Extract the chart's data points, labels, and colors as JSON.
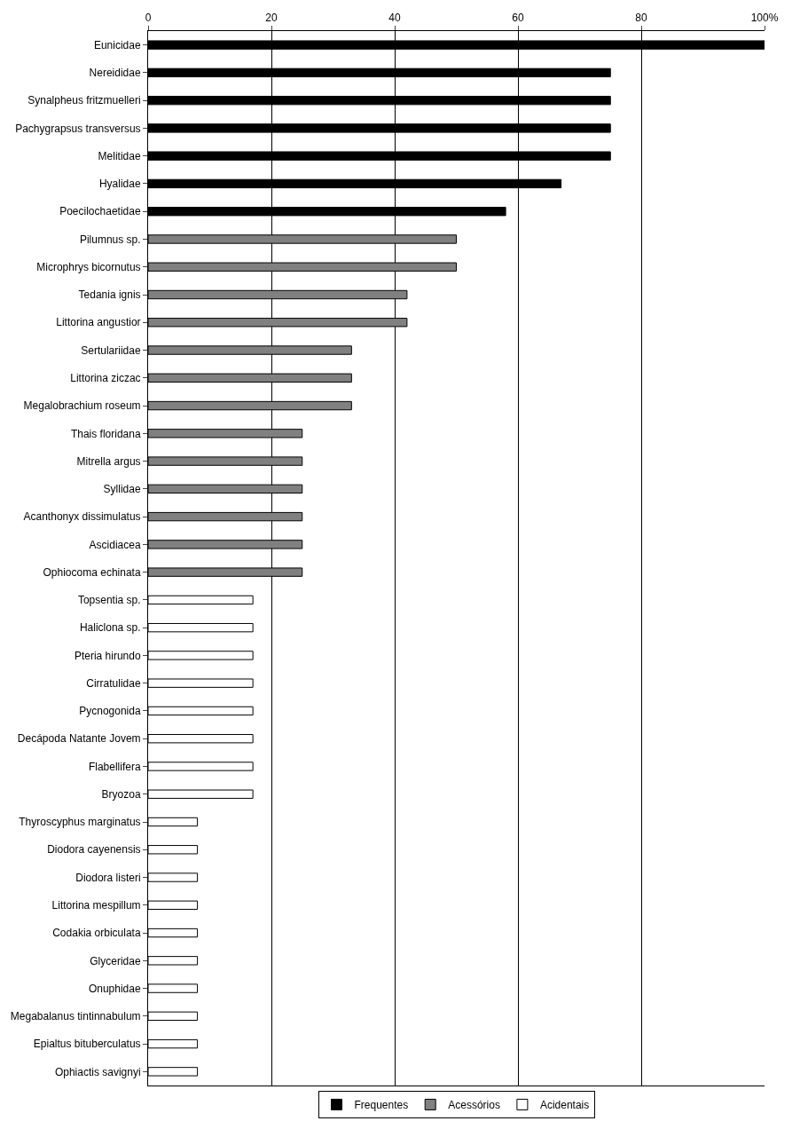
{
  "chart_data": {
    "type": "bar",
    "orientation": "horizontal",
    "categories": [
      "Eunicidae",
      "Nereididae",
      "Synalpheus fritzmuelleri",
      "Pachygrapsus transversus",
      "Melitidae",
      "Hyalidae",
      "Poecilochaetidae",
      "Pilumnus sp.",
      "Microphrys bicornutus",
      "Tedania ignis",
      "Littorina angustior",
      "Sertulariidae",
      "Littorina ziczac",
      "Megalobrachium roseum",
      "Thais floridana",
      "Mitrella argus",
      "Syllidae",
      "Acanthonyx dissimulatus",
      "Ascidiacea",
      "Ophiocoma echinata",
      "Topsentia sp.",
      "Haliclona sp.",
      "Pteria hirundo",
      "Cirratulidae",
      "Pycnogonida",
      "Decápoda Natante Jovem",
      "Flabellifera",
      "Bryozoa",
      "Thyroscyphus marginatus",
      "Diodora cayenensis",
      "Diodora listeri",
      "Littorina mespillum",
      "Codakia orbiculata",
      "Glyceridae",
      "Onuphidae",
      "Megabalanus tintinnabulum",
      "Epialtus bituberculatus",
      "Ophiactis savignyi"
    ],
    "series": [
      {
        "name": "Frequentes",
        "color": "#000000",
        "values": [
          100,
          75,
          75,
          75,
          75,
          67,
          58,
          null,
          null,
          null,
          null,
          null,
          null,
          null,
          null,
          null,
          null,
          null,
          null,
          null,
          null,
          null,
          null,
          null,
          null,
          null,
          null,
          null,
          null,
          null,
          null,
          null,
          null,
          null,
          null,
          null,
          null,
          null
        ]
      },
      {
        "name": "Acessórios",
        "color": "#808080",
        "values": [
          null,
          null,
          null,
          null,
          null,
          null,
          null,
          50,
          50,
          42,
          42,
          33,
          33,
          33,
          25,
          25,
          25,
          25,
          25,
          25,
          null,
          null,
          null,
          null,
          null,
          null,
          null,
          null,
          null,
          null,
          null,
          null,
          null,
          null,
          null,
          null,
          null,
          null
        ]
      },
      {
        "name": "Acidentais",
        "color": "#ffffff",
        "values": [
          null,
          null,
          null,
          null,
          null,
          null,
          null,
          null,
          null,
          null,
          null,
          null,
          null,
          null,
          null,
          null,
          null,
          null,
          null,
          null,
          17,
          17,
          17,
          17,
          17,
          17,
          17,
          17,
          8,
          8,
          8,
          8,
          8,
          8,
          8,
          8,
          8,
          8
        ]
      }
    ],
    "xlim": [
      0,
      100
    ],
    "xticks": [
      0,
      20,
      40,
      60,
      80,
      {
        "value": 100,
        "label": "100%"
      }
    ],
    "grid": "x",
    "legend": "bottom"
  }
}
